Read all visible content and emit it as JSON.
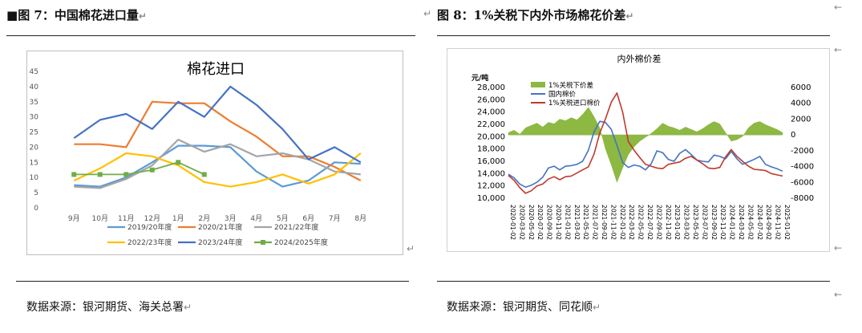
{
  "marks": {
    "return": "↵",
    "arrow": "←"
  },
  "left": {
    "bullet": "■",
    "title": "图 7：中国棉花进口量",
    "source": "数据来源：银河期货、海关总署",
    "chart_data": {
      "type": "line",
      "title": "棉花进口",
      "categories": [
        "9月",
        "10月",
        "11月",
        "12月",
        "1月",
        "2月",
        "3月",
        "4月",
        "5月",
        "6月",
        "7月",
        "8月"
      ],
      "yticks": [
        "0",
        "5",
        "10",
        "15",
        "20",
        "25",
        "30",
        "35",
        "40",
        "45"
      ],
      "ylim": [
        0,
        45
      ],
      "grid": false,
      "legend_position": "bottom",
      "series": [
        {
          "name": "2019/20年度",
          "color": "#5B9BD5",
          "values": [
            7.5,
            7,
            10,
            15,
            20.5,
            20.5,
            20,
            12,
            7,
            9,
            15,
            14.5
          ]
        },
        {
          "name": "2020/21年度",
          "color": "#ED7D31",
          "values": [
            21,
            21,
            20,
            35,
            34.5,
            34.5,
            28.5,
            23.5,
            17,
            17,
            13.5,
            9
          ]
        },
        {
          "name": "2021/22年度",
          "color": "#A5A5A5",
          "values": [
            7,
            6.5,
            9.5,
            14,
            22.5,
            18.5,
            21,
            17,
            18,
            16,
            12,
            11
          ]
        },
        {
          "name": "2022/23年度",
          "color": "#FFC000",
          "values": [
            9,
            13,
            18,
            17,
            14,
            8.5,
            7,
            8.5,
            11,
            8,
            11,
            18
          ]
        },
        {
          "name": "2023/24年度",
          "color": "#4472C4",
          "values": [
            23,
            29,
            31,
            26,
            35,
            30,
            40,
            34,
            26,
            16,
            20,
            15
          ]
        },
        {
          "name": "2024/2025年度",
          "color": "#70AD47",
          "values": [
            11,
            11,
            11,
            12.5,
            15,
            11,
            null,
            null,
            null,
            null,
            null,
            null
          ]
        }
      ]
    }
  },
  "right": {
    "title": "图 8：1%关税下内外市场棉花价差",
    "source": "数据来源：银河期货、同花顺",
    "chart_data": {
      "type": "line",
      "title": "内外棉价差",
      "unit_label": "元/吨",
      "left_axis": {
        "ylim": [
          10000,
          28000
        ],
        "ticks": [
          "10,000",
          "12,000",
          "14,000",
          "16,000",
          "18,000",
          "20,000",
          "22,000",
          "24,000",
          "26,000",
          "28,000"
        ]
      },
      "right_axis": {
        "ylim": [
          -8000,
          6000
        ],
        "ticks": [
          "-8000",
          "-6000",
          "-4000",
          "-2000",
          "0",
          "2000",
          "4000",
          "6000"
        ]
      },
      "x_ticks": [
        "2020-01-02",
        "2020-03-02",
        "2020-05-02",
        "2020-07-02",
        "2020-09-02",
        "2020-11-02",
        "2021-01-02",
        "2021-03-02",
        "2021-05-02",
        "2021-07-02",
        "2021-09-02",
        "2021-11-02",
        "2022-01-02",
        "2022-03-02",
        "2022-05-02",
        "2022-07-02",
        "2022-09-02",
        "2022-11-02",
        "2023-01-02",
        "2023-03-02",
        "2023-05-02",
        "2023-07-02",
        "2023-09-02",
        "2023-11-02",
        "2024-01-02",
        "2024-03-02",
        "2024-05-02",
        "2024-07-02",
        "2024-09-02",
        "2024-11-02",
        "2025-01-02"
      ],
      "legend_position": "top-left",
      "series": [
        {
          "name": "1%关税下价差",
          "axis": "right",
          "kind": "area",
          "color": "#8DB842",
          "points": [
            [
              0,
              300
            ],
            [
              1,
              600
            ],
            [
              2,
              100
            ],
            [
              3,
              900
            ],
            [
              4,
              1200
            ],
            [
              5,
              1500
            ],
            [
              6,
              1000
            ],
            [
              7,
              1600
            ],
            [
              8,
              1400
            ],
            [
              9,
              2000
            ],
            [
              10,
              1800
            ],
            [
              11,
              2200
            ],
            [
              12,
              1900
            ],
            [
              13,
              2600
            ],
            [
              14,
              3500
            ],
            [
              15,
              2300
            ],
            [
              16,
              900
            ],
            [
              17,
              -1800
            ],
            [
              18,
              -3800
            ],
            [
              19,
              -6000
            ],
            [
              20,
              -4200
            ],
            [
              21,
              -2500
            ],
            [
              22,
              -1500
            ],
            [
              23,
              -800
            ],
            [
              24,
              -300
            ],
            [
              25,
              200
            ],
            [
              26,
              800
            ],
            [
              27,
              1500
            ],
            [
              28,
              1100
            ],
            [
              29,
              900
            ],
            [
              30,
              600
            ],
            [
              31,
              1000
            ],
            [
              32,
              700
            ],
            [
              33,
              400
            ],
            [
              34,
              800
            ],
            [
              35,
              1300
            ],
            [
              36,
              1700
            ],
            [
              37,
              1400
            ],
            [
              38,
              300
            ],
            [
              39,
              -800
            ],
            [
              40,
              -600
            ],
            [
              41,
              -200
            ],
            [
              42,
              900
            ],
            [
              43,
              1500
            ],
            [
              44,
              1700
            ],
            [
              45,
              1300
            ],
            [
              46,
              1000
            ],
            [
              47,
              700
            ],
            [
              48,
              300
            ]
          ]
        },
        {
          "name": "国内棉价",
          "axis": "left",
          "kind": "line",
          "color": "#4472C4",
          "points": [
            [
              0,
              13900
            ],
            [
              1,
              13300
            ],
            [
              2,
              12300
            ],
            [
              3,
              11800
            ],
            [
              4,
              12100
            ],
            [
              5,
              12600
            ],
            [
              6,
              13400
            ],
            [
              7,
              14900
            ],
            [
              8,
              15200
            ],
            [
              9,
              14600
            ],
            [
              10,
              15200
            ],
            [
              11,
              15300
            ],
            [
              12,
              15500
            ],
            [
              13,
              16000
            ],
            [
              14,
              17800
            ],
            [
              15,
              20800
            ],
            [
              16,
              22500
            ],
            [
              17,
              22300
            ],
            [
              18,
              21200
            ],
            [
              19,
              18600
            ],
            [
              20,
              15800
            ],
            [
              21,
              15000
            ],
            [
              22,
              15400
            ],
            [
              23,
              15200
            ],
            [
              24,
              14600
            ],
            [
              25,
              15600
            ],
            [
              26,
              17700
            ],
            [
              27,
              17400
            ],
            [
              28,
              16300
            ],
            [
              29,
              16000
            ],
            [
              30,
              17300
            ],
            [
              31,
              17900
            ],
            [
              32,
              17100
            ],
            [
              33,
              16200
            ],
            [
              34,
              16000
            ],
            [
              35,
              15900
            ],
            [
              36,
              17000
            ],
            [
              37,
              16800
            ],
            [
              38,
              16400
            ],
            [
              39,
              17600
            ],
            [
              40,
              16400
            ],
            [
              41,
              15500
            ],
            [
              42,
              15900
            ],
            [
              43,
              16300
            ],
            [
              44,
              16800
            ],
            [
              45,
              15500
            ],
            [
              46,
              15100
            ],
            [
              47,
              14800
            ],
            [
              48,
              14400
            ]
          ]
        },
        {
          "name": "1%关税进口棉价",
          "axis": "left",
          "kind": "line",
          "color": "#C0392B",
          "points": [
            [
              0,
              13700
            ],
            [
              1,
              12900
            ],
            [
              2,
              11700
            ],
            [
              3,
              10800
            ],
            [
              4,
              11200
            ],
            [
              5,
              12000
            ],
            [
              6,
              12300
            ],
            [
              7,
              13100
            ],
            [
              8,
              13500
            ],
            [
              9,
              13000
            ],
            [
              10,
              13500
            ],
            [
              11,
              13600
            ],
            [
              12,
              14100
            ],
            [
              13,
              14600
            ],
            [
              14,
              15100
            ],
            [
              15,
              17200
            ],
            [
              16,
              20600
            ],
            [
              17,
              22900
            ],
            [
              18,
              25600
            ],
            [
              19,
              27100
            ],
            [
              20,
              24000
            ],
            [
              21,
              19200
            ],
            [
              22,
              17800
            ],
            [
              23,
              16600
            ],
            [
              24,
              15500
            ],
            [
              25,
              15200
            ],
            [
              26,
              14900
            ],
            [
              27,
              14800
            ],
            [
              28,
              15500
            ],
            [
              29,
              15700
            ],
            [
              30,
              15900
            ],
            [
              31,
              16500
            ],
            [
              32,
              16800
            ],
            [
              33,
              16200
            ],
            [
              34,
              15600
            ],
            [
              35,
              14900
            ],
            [
              36,
              14800
            ],
            [
              37,
              15000
            ],
            [
              38,
              16700
            ],
            [
              39,
              17900
            ],
            [
              40,
              16800
            ],
            [
              41,
              16000
            ],
            [
              42,
              15200
            ],
            [
              43,
              14700
            ],
            [
              44,
              14600
            ],
            [
              45,
              14500
            ],
            [
              46,
              14000
            ],
            [
              47,
              13800
            ],
            [
              48,
              13600
            ]
          ]
        }
      ]
    }
  }
}
